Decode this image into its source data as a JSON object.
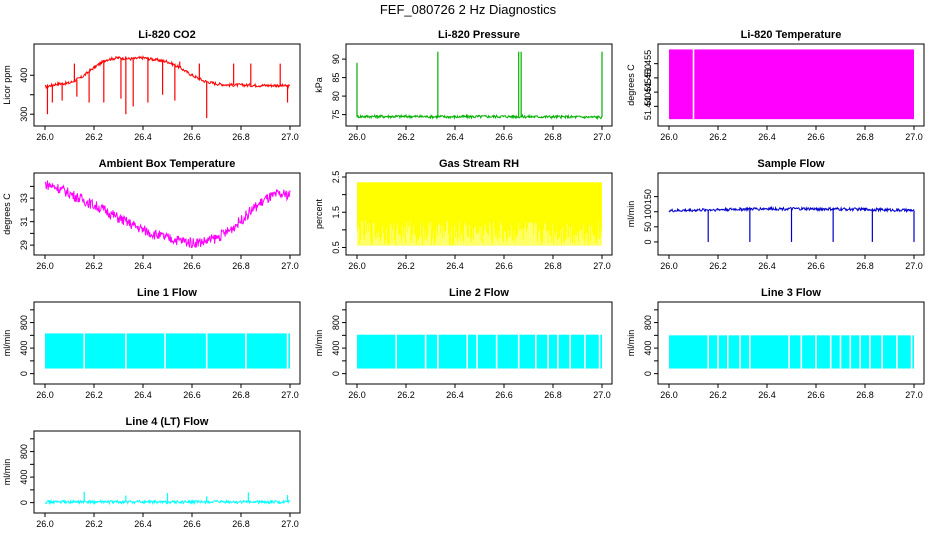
{
  "figure": {
    "title": "FEF_080726  2 Hz Diagnostics"
  },
  "chart_data": [
    {
      "type": "line",
      "title": "Li-820 CO2",
      "xlabel": "",
      "ylabel": "Licor ppm",
      "color": "#ff0000",
      "xlim": [
        26.0,
        27.0
      ],
      "ylim": [
        280,
        470
      ],
      "xticks": [
        "26.0",
        "26.2",
        "26.4",
        "26.6",
        "26.8",
        "27.0"
      ],
      "yticks": [
        300,
        350,
        400
      ],
      "yticklabels": [
        "300",
        "",
        "400"
      ],
      "x": [
        26.0,
        26.05,
        26.1,
        26.15,
        26.2,
        26.25,
        26.3,
        26.35,
        26.4,
        26.45,
        26.5,
        26.55,
        26.6,
        26.65,
        26.7,
        26.75,
        26.8,
        26.85,
        26.9,
        26.95,
        27.0
      ],
      "y": [
        370,
        378,
        380,
        395,
        420,
        440,
        445,
        442,
        445,
        440,
        435,
        420,
        400,
        385,
        378,
        375,
        375,
        374,
        374,
        374,
        372
      ],
      "spikes": [
        [
          26.01,
          300
        ],
        [
          26.03,
          330
        ],
        [
          26.07,
          335
        ],
        [
          26.13,
          345
        ],
        [
          26.18,
          330
        ],
        [
          26.24,
          330
        ],
        [
          26.31,
          340
        ],
        [
          26.33,
          300
        ],
        [
          26.36,
          320
        ],
        [
          26.42,
          330
        ],
        [
          26.48,
          350
        ],
        [
          26.53,
          335
        ],
        [
          26.66,
          290
        ],
        [
          26.99,
          330
        ],
        [
          26.12,
          430
        ],
        [
          26.55,
          435
        ],
        [
          26.63,
          430
        ],
        [
          26.77,
          430
        ],
        [
          26.84,
          430
        ],
        [
          26.96,
          430
        ]
      ]
    },
    {
      "type": "line",
      "title": "Li-820 Pressure",
      "xlabel": "",
      "ylabel": "kPa",
      "color": "#00b000",
      "xlim": [
        26.0,
        27.0
      ],
      "ylim": [
        73,
        93
      ],
      "xticks": [
        "26.0",
        "26.2",
        "26.4",
        "26.6",
        "26.8",
        "27.0"
      ],
      "yticks": [
        75,
        80,
        85,
        90
      ],
      "yticklabels": [
        "75",
        "80",
        "85",
        "90"
      ],
      "x": [
        26.0,
        26.2,
        26.4,
        26.6,
        26.8,
        27.0
      ],
      "y": [
        74.5,
        74.5,
        74.4,
        74.5,
        74.4,
        74.3
      ],
      "spikes": [
        [
          26.0,
          89
        ],
        [
          26.33,
          92
        ],
        [
          26.66,
          92
        ],
        [
          26.67,
          92
        ],
        [
          27.0,
          92
        ]
      ]
    },
    {
      "type": "area",
      "title": "Li-820 Temperature",
      "xlabel": "",
      "ylabel": "degrees C",
      "color": "#ff00ff",
      "xlim": [
        26.0,
        27.0
      ],
      "ylim": [
        51.4345,
        51.4605
      ],
      "xticks": [
        "26.0",
        "26.2",
        "26.4",
        "26.6",
        "26.8",
        "27.0"
      ],
      "yticks": [
        51.44,
        51.445,
        51.45,
        51.455
      ],
      "yticklabels": [
        "51.440",
        "51.445",
        "51.450",
        "51.455"
      ],
      "fill_range": [
        51.4355,
        51.46
      ],
      "gaps": [
        26.1
      ]
    },
    {
      "type": "line",
      "title": "Ambient Box Temperature",
      "xlabel": "",
      "ylabel": "degrees C",
      "color": "#ff00ff",
      "xlim": [
        26.0,
        27.0
      ],
      "ylim": [
        28.5,
        34.8
      ],
      "xticks": [
        "26.0",
        "26.2",
        "26.4",
        "26.6",
        "26.8",
        "27.0"
      ],
      "yticks": [
        29,
        30,
        31,
        32,
        33,
        34
      ],
      "yticklabels": [
        "29",
        "",
        "31",
        "",
        "33",
        ""
      ],
      "x": [
        26.0,
        26.05,
        26.1,
        26.15,
        26.2,
        26.25,
        26.3,
        26.35,
        26.4,
        26.45,
        26.5,
        26.55,
        26.6,
        26.65,
        26.7,
        26.75,
        26.8,
        26.85,
        26.9,
        26.95,
        27.0
      ],
      "y": [
        34.2,
        33.9,
        33.4,
        32.9,
        32.4,
        31.9,
        31.3,
        30.8,
        30.3,
        29.9,
        29.6,
        29.4,
        29.2,
        29.3,
        29.6,
        30.2,
        31.1,
        32.1,
        32.9,
        33.3,
        33.3
      ],
      "noise": 0.45
    },
    {
      "type": "area",
      "title": "Gas Stream RH",
      "xlabel": "",
      "ylabel": "percent",
      "color": "#ffff00",
      "xlim": [
        26.0,
        27.0
      ],
      "ylim": [
        0.4,
        2.5
      ],
      "xticks": [
        "26.0",
        "26.2",
        "26.4",
        "26.6",
        "26.8",
        "27.0"
      ],
      "yticks": [
        0.5,
        1.0,
        1.5,
        2.0,
        2.5
      ],
      "yticklabels": [
        "0.5",
        "",
        "1.5",
        "",
        "2.5"
      ],
      "fill_range": [
        0.55,
        2.35
      ]
    },
    {
      "type": "line",
      "title": "Sample Flow",
      "xlabel": "",
      "ylabel": "ml/min",
      "color": "#0000cc",
      "xlim": [
        26.0,
        27.0
      ],
      "ylim": [
        -30,
        215
      ],
      "xticks": [
        "26.0",
        "26.2",
        "26.4",
        "26.6",
        "26.8",
        "27.0"
      ],
      "yticks": [
        0,
        50,
        100,
        150
      ],
      "yticklabels": [
        "0",
        "50",
        "100",
        "150"
      ],
      "x": [
        26.0,
        26.2,
        26.4,
        26.6,
        26.8,
        27.0
      ],
      "y": [
        103,
        107,
        110,
        109,
        108,
        104
      ],
      "spikes": [
        [
          26.16,
          0
        ],
        [
          26.33,
          0
        ],
        [
          26.5,
          0
        ],
        [
          26.67,
          0
        ],
        [
          26.83,
          0
        ],
        [
          27.0,
          0
        ]
      ]
    },
    {
      "type": "area",
      "title": "Line 1 Flow",
      "xlabel": "",
      "ylabel": "ml/min",
      "color": "#00ffff",
      "xlim": [
        26.0,
        27.0
      ],
      "ylim": [
        -100,
        1060
      ],
      "xticks": [
        "26.0",
        "26.2",
        "26.4",
        "26.6",
        "26.8",
        "27.0"
      ],
      "yticks": [
        0,
        200,
        400,
        600,
        800,
        1000
      ],
      "yticklabels": [
        "0",
        "",
        "400",
        "",
        "800",
        ""
      ],
      "fill_range": [
        80,
        630
      ],
      "gaps": [
        26.16,
        26.33,
        26.49,
        26.66,
        26.82,
        26.99
      ]
    },
    {
      "type": "area",
      "title": "Line 2 Flow",
      "xlabel": "",
      "ylabel": "ml/min",
      "color": "#00ffff",
      "xlim": [
        26.0,
        27.0
      ],
      "ylim": [
        -100,
        1060
      ],
      "xticks": [
        "26.0",
        "26.2",
        "26.4",
        "26.6",
        "26.8",
        "27.0"
      ],
      "yticks": [
        0,
        200,
        400,
        600,
        800,
        1000
      ],
      "yticklabels": [
        "0",
        "",
        "400",
        "",
        "800",
        ""
      ],
      "fill_range": [
        80,
        610
      ],
      "gaps": [
        26.16,
        26.28,
        26.33,
        26.45,
        26.49,
        26.57,
        26.66,
        26.73,
        26.78,
        26.82,
        26.87,
        26.93,
        26.99
      ]
    },
    {
      "type": "area",
      "title": "Line 3 Flow",
      "xlabel": "",
      "ylabel": "ml/min",
      "color": "#00ffff",
      "xlim": [
        26.0,
        27.0
      ],
      "ylim": [
        -100,
        1060
      ],
      "xticks": [
        "26.0",
        "26.2",
        "26.4",
        "26.6",
        "26.8",
        "27.0"
      ],
      "yticks": [
        0,
        200,
        400,
        600,
        800,
        1000
      ],
      "yticklabels": [
        "0",
        "",
        "400",
        "",
        "800",
        ""
      ],
      "fill_range": [
        80,
        600
      ],
      "gaps": [
        26.16,
        26.2,
        26.24,
        26.29,
        26.33,
        26.49,
        26.54,
        26.6,
        26.66,
        26.7,
        26.74,
        26.78,
        26.82,
        26.87,
        26.93,
        26.99
      ]
    },
    {
      "type": "line",
      "title": "Line 4 (LT) Flow",
      "xlabel": "",
      "ylabel": "ml/min",
      "color": "#00ffff",
      "xlim": [
        26.0,
        27.0
      ],
      "ylim": [
        -100,
        1060
      ],
      "xticks": [
        "26.0",
        "26.2",
        "26.4",
        "26.6",
        "26.8",
        "27.0"
      ],
      "yticks": [
        0,
        200,
        400,
        600,
        800,
        1000
      ],
      "yticklabels": [
        "0",
        "",
        "400",
        "",
        "800",
        ""
      ],
      "x": [
        26.0,
        26.5,
        27.0
      ],
      "y": [
        10,
        10,
        10
      ],
      "spikes": [
        [
          26.16,
          170
        ],
        [
          26.33,
          110
        ],
        [
          26.5,
          150
        ],
        [
          26.66,
          100
        ],
        [
          26.83,
          160
        ],
        [
          26.99,
          120
        ]
      ]
    }
  ]
}
